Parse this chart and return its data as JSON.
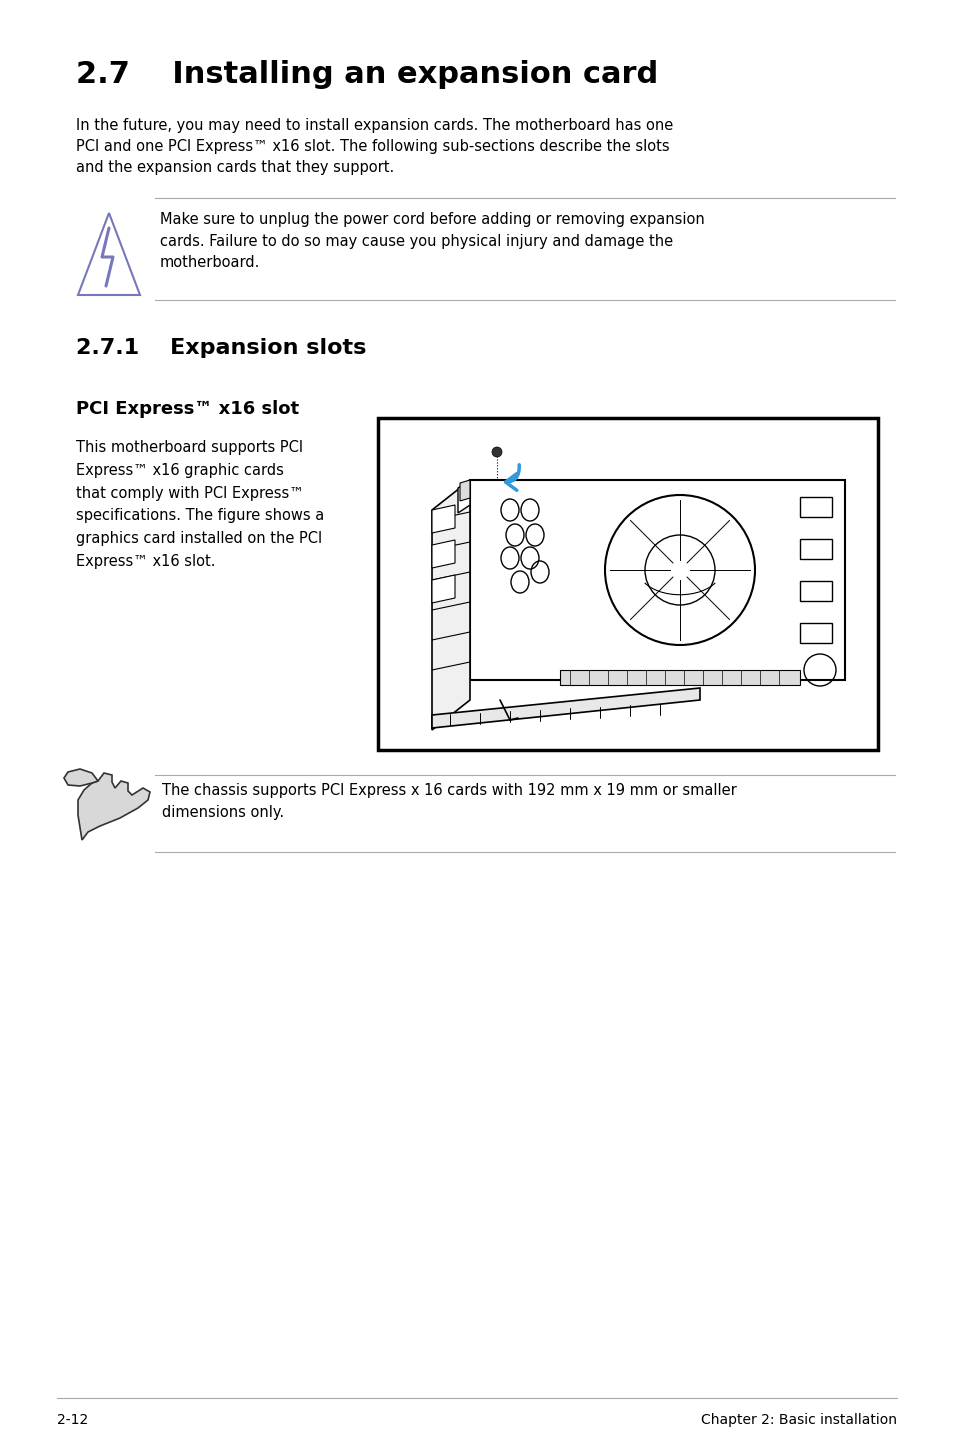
{
  "title": "2.7    Installing an expansion card",
  "title_fontsize": 22,
  "body_text": "In the future, you may need to install expansion cards. The motherboard has one\nPCI and one PCI Express™ x16 slot. The following sub-sections describe the slots\nand the expansion cards that they support.",
  "warning_text": "Make sure to unplug the power cord before adding or removing expansion\ncards. Failure to do so may cause you physical injury and damage the\nmotherboard.",
  "section_title": "2.7.1    Expansion slots",
  "subsection_title": "PCI Express™ x16 slot",
  "subsection_text": "This motherboard supports PCI\nExpress™ x16 graphic cards\nthat comply with PCI Express™\nspecifications. The figure shows a\ngraphics card installed on the PCI\nExpress™ x16 slot.",
  "note_text": "The chassis supports PCI Express x 16 cards with 192 mm x 19 mm or smaller\ndimensions only.",
  "footer_left": "2-12",
  "footer_right": "Chapter 2: Basic installation",
  "bg_color": "#ffffff",
  "text_color": "#000000",
  "icon_color": "#7777bb",
  "blue_arrow": "#3399dd"
}
